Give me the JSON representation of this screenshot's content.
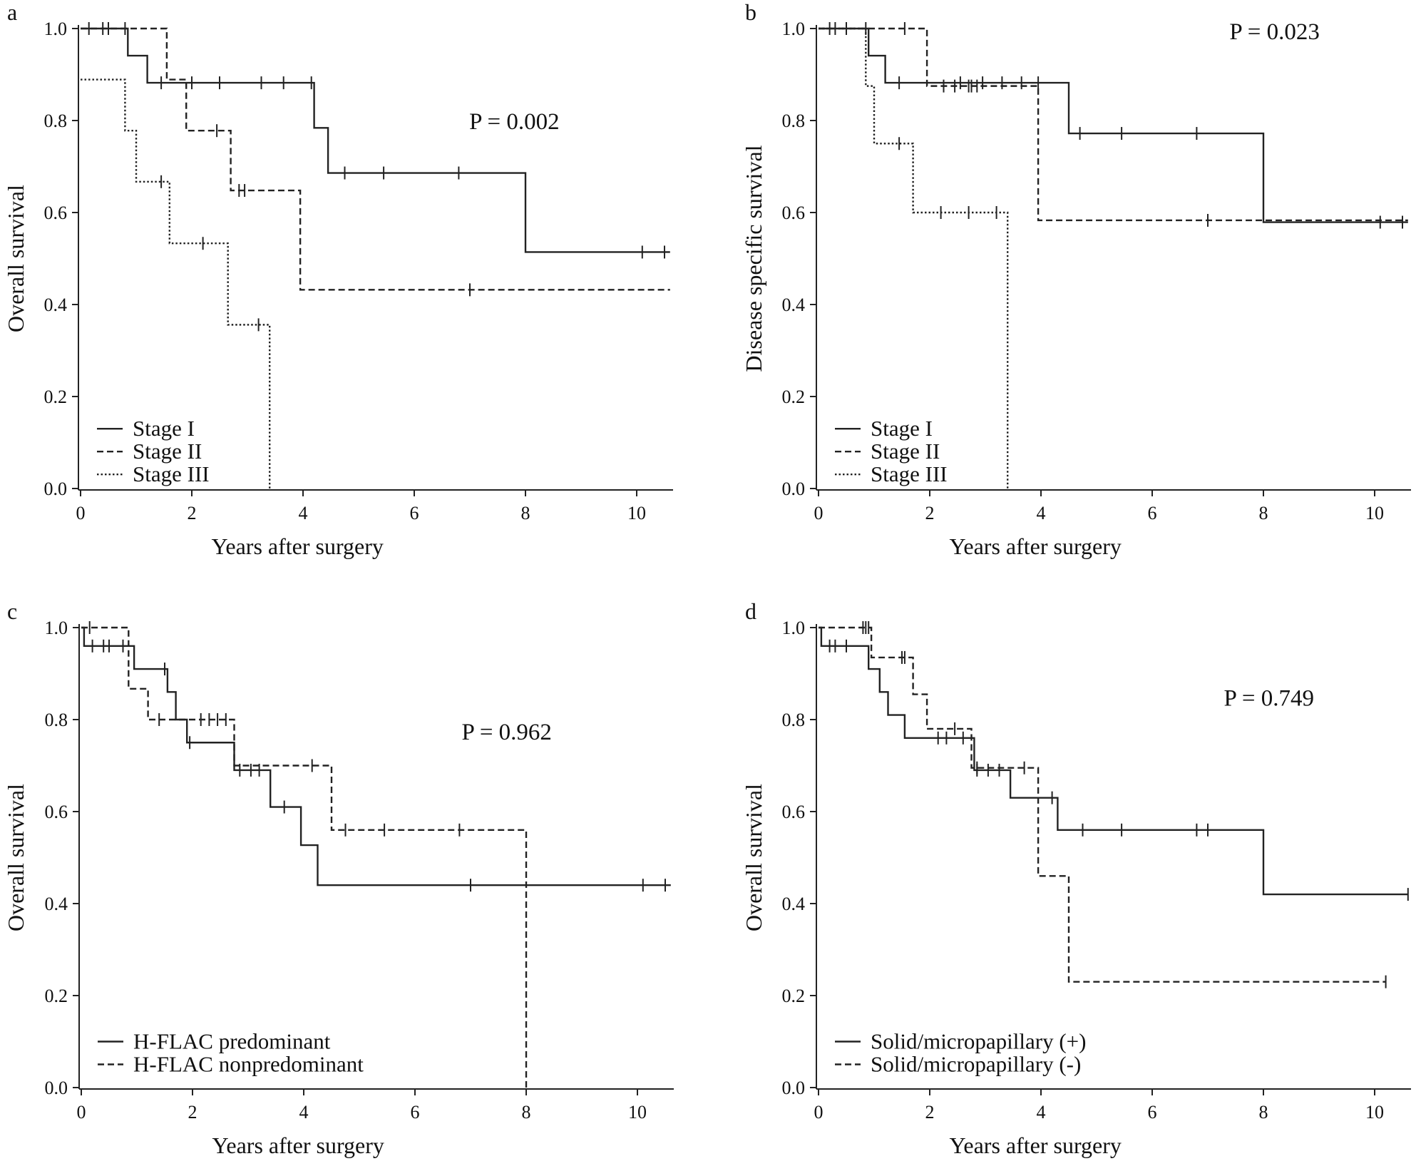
{
  "chart_data": [
    {
      "type": "line",
      "panel": "a",
      "ylabel": "Overall survival",
      "xlabel": "Years after surgery",
      "xlim": [
        0,
        10.7
      ],
      "ylim": [
        0,
        1.0
      ],
      "xticks": [
        0,
        2,
        4,
        6,
        8,
        10
      ],
      "yticks": [
        0.0,
        0.2,
        0.4,
        0.6,
        0.8,
        1.0
      ],
      "xtick_labels": [
        "0",
        "2",
        "4",
        "6",
        "8",
        "10"
      ],
      "ytick_labels": [
        "0.0",
        "0.2",
        "0.4",
        "0.6",
        "0.8",
        "1.0"
      ],
      "p_value": "P = 0.002",
      "legend": [
        "Stage I",
        "Stage II",
        "Stage III"
      ],
      "series": [
        {
          "name": "Stage I",
          "style": "solid",
          "steps": [
            [
              0,
              1.0
            ],
            [
              0.85,
              0.941
            ],
            [
              1.2,
              0.882
            ],
            [
              4.2,
              0.784
            ],
            [
              4.45,
              0.686
            ],
            [
              8.0,
              0.514
            ]
          ],
          "end": 10.6,
          "censor": [
            [
              0.15,
              1.0
            ],
            [
              0.4,
              1.0
            ],
            [
              0.5,
              1.0
            ],
            [
              0.8,
              1.0
            ],
            [
              1.45,
              0.882
            ],
            [
              2.0,
              0.882
            ],
            [
              2.5,
              0.882
            ],
            [
              3.25,
              0.882
            ],
            [
              3.65,
              0.882
            ],
            [
              4.15,
              0.882
            ],
            [
              4.75,
              0.686
            ],
            [
              5.45,
              0.686
            ],
            [
              6.8,
              0.686
            ],
            [
              10.1,
              0.514
            ],
            [
              10.5,
              0.514
            ]
          ]
        },
        {
          "name": "Stage II",
          "style": "dashed",
          "steps": [
            [
              0,
              1.0
            ],
            [
              1.55,
              0.889
            ],
            [
              1.9,
              0.778
            ],
            [
              2.7,
              0.648
            ],
            [
              3.95,
              0.432
            ]
          ],
          "end": 10.6,
          "censor": [
            [
              2.45,
              0.778
            ],
            [
              2.85,
              0.648
            ],
            [
              2.95,
              0.648
            ],
            [
              7.0,
              0.432
            ]
          ]
        },
        {
          "name": "Stage III",
          "style": "dotted",
          "steps": [
            [
              0,
              0.889
            ],
            [
              0.8,
              0.778
            ],
            [
              1.0,
              0.667
            ],
            [
              1.6,
              0.533
            ],
            [
              2.65,
              0.356
            ],
            [
              3.4,
              0.0
            ]
          ],
          "end": 3.4,
          "censor": [
            [
              1.45,
              0.667
            ],
            [
              2.2,
              0.533
            ],
            [
              3.2,
              0.356
            ]
          ]
        }
      ]
    },
    {
      "type": "line",
      "panel": "b",
      "ylabel": "Disease specific survival",
      "xlabel": "Years after surgery",
      "xlim": [
        0,
        10.7
      ],
      "ylim": [
        0,
        1.0
      ],
      "xticks": [
        0,
        2,
        4,
        6,
        8,
        10
      ],
      "yticks": [
        0.0,
        0.2,
        0.4,
        0.6,
        0.8,
        1.0
      ],
      "xtick_labels": [
        "0",
        "2",
        "4",
        "6",
        "8",
        "10"
      ],
      "ytick_labels": [
        "0.0",
        "0.2",
        "0.4",
        "0.6",
        "0.8",
        "1.0"
      ],
      "p_value": "P = 0.023",
      "legend": [
        "Stage I",
        "Stage II",
        "Stage III"
      ],
      "series": [
        {
          "name": "Stage I",
          "style": "solid",
          "steps": [
            [
              0,
              1.0
            ],
            [
              0.9,
              0.941
            ],
            [
              1.2,
              0.882
            ],
            [
              4.5,
              0.772
            ],
            [
              8.0,
              0.579
            ]
          ],
          "end": 10.6,
          "censor": [
            [
              0.2,
              1.0
            ],
            [
              0.3,
              1.0
            ],
            [
              0.5,
              1.0
            ],
            [
              0.85,
              1.0
            ],
            [
              1.45,
              0.882
            ],
            [
              2.55,
              0.882
            ],
            [
              2.95,
              0.882
            ],
            [
              3.3,
              0.882
            ],
            [
              3.65,
              0.882
            ],
            [
              3.95,
              0.882
            ],
            [
              4.7,
              0.772
            ],
            [
              5.45,
              0.772
            ],
            [
              6.8,
              0.772
            ],
            [
              10.1,
              0.579
            ],
            [
              10.5,
              0.579
            ]
          ]
        },
        {
          "name": "Stage II",
          "style": "dashed",
          "steps": [
            [
              0,
              1.0
            ],
            [
              1.95,
              0.875
            ],
            [
              3.95,
              0.583
            ]
          ],
          "end": 10.6,
          "censor": [
            [
              1.55,
              1.0
            ],
            [
              2.25,
              0.875
            ],
            [
              2.45,
              0.875
            ],
            [
              2.7,
              0.875
            ],
            [
              2.75,
              0.875
            ],
            [
              2.85,
              0.875
            ],
            [
              7.0,
              0.583
            ]
          ]
        },
        {
          "name": "Stage III",
          "style": "dotted",
          "steps": [
            [
              0,
              1.0
            ],
            [
              0.85,
              0.875
            ],
            [
              1.0,
              0.75
            ],
            [
              1.7,
              0.6
            ],
            [
              3.4,
              0.0
            ]
          ],
          "end": 3.4,
          "censor": [
            [
              1.45,
              0.75
            ],
            [
              2.2,
              0.6
            ],
            [
              2.7,
              0.6
            ],
            [
              3.2,
              0.6
            ]
          ]
        }
      ]
    },
    {
      "type": "line",
      "panel": "c",
      "ylabel": "Overall survival",
      "xlabel": "Years after surgery",
      "xlim": [
        0,
        10.7
      ],
      "ylim": [
        0,
        1.0
      ],
      "xticks": [
        0,
        2,
        4,
        6,
        8,
        10
      ],
      "yticks": [
        0.0,
        0.2,
        0.4,
        0.6,
        0.8,
        1.0
      ],
      "xtick_labels": [
        "0",
        "2",
        "4",
        "6",
        "8",
        "10"
      ],
      "ytick_labels": [
        "0.0",
        "0.2",
        "0.4",
        "0.6",
        "0.8",
        "1.0"
      ],
      "p_value": "P = 0.962",
      "legend": [
        "H-FLAC predominant",
        "H-FLAC nonpredominant"
      ],
      "series": [
        {
          "name": "H-FLAC predominant",
          "style": "solid",
          "steps": [
            [
              0,
              1.0
            ],
            [
              0.05,
              0.96
            ],
            [
              0.95,
              0.91
            ],
            [
              1.55,
              0.86
            ],
            [
              1.7,
              0.8
            ],
            [
              1.9,
              0.75
            ],
            [
              2.75,
              0.69
            ],
            [
              3.4,
              0.61
            ],
            [
              3.95,
              0.527
            ],
            [
              4.25,
              0.44
            ]
          ],
          "end": 10.6,
          "censor": [
            [
              0.2,
              0.96
            ],
            [
              0.4,
              0.96
            ],
            [
              0.5,
              0.96
            ],
            [
              0.75,
              0.96
            ],
            [
              1.5,
              0.91
            ],
            [
              1.95,
              0.75
            ],
            [
              2.85,
              0.69
            ],
            [
              3.05,
              0.69
            ],
            [
              3.2,
              0.69
            ],
            [
              3.65,
              0.61
            ],
            [
              7.0,
              0.44
            ],
            [
              10.1,
              0.44
            ],
            [
              10.5,
              0.44
            ]
          ]
        },
        {
          "name": "H-FLAC nonpredominant",
          "style": "dashed",
          "steps": [
            [
              0,
              1.0
            ],
            [
              0.85,
              0.867
            ],
            [
              1.2,
              0.8
            ],
            [
              2.75,
              0.7
            ],
            [
              4.5,
              0.56
            ],
            [
              8.0,
              0.0
            ]
          ],
          "end": 8.0,
          "censor": [
            [
              0.15,
              1.0
            ],
            [
              1.4,
              0.8
            ],
            [
              2.15,
              0.8
            ],
            [
              2.3,
              0.8
            ],
            [
              2.45,
              0.8
            ],
            [
              2.6,
              0.8
            ],
            [
              4.15,
              0.7
            ],
            [
              4.75,
              0.56
            ],
            [
              5.45,
              0.56
            ],
            [
              6.8,
              0.56
            ]
          ]
        }
      ]
    },
    {
      "type": "line",
      "panel": "d",
      "ylabel": "Overall survival",
      "xlabel": "Years after surgery",
      "xlim": [
        0,
        10.7
      ],
      "ylim": [
        0,
        1.0
      ],
      "xticks": [
        0,
        2,
        4,
        6,
        8,
        10
      ],
      "yticks": [
        0.0,
        0.2,
        0.4,
        0.6,
        0.8,
        1.0
      ],
      "xtick_labels": [
        "0",
        "2",
        "4",
        "6",
        "8",
        "10"
      ],
      "ytick_labels": [
        "0.0",
        "0.2",
        "0.4",
        "0.6",
        "0.8",
        "1.0"
      ],
      "p_value": "P = 0.749",
      "legend": [
        "Solid/micropapillary (+)",
        "Solid/micropapillary (-)"
      ],
      "series": [
        {
          "name": "Solid/micropapillary (+)",
          "style": "solid",
          "steps": [
            [
              0,
              1.0
            ],
            [
              0.05,
              0.96
            ],
            [
              0.9,
              0.91
            ],
            [
              1.1,
              0.86
            ],
            [
              1.25,
              0.81
            ],
            [
              1.55,
              0.76
            ],
            [
              2.8,
              0.69
            ],
            [
              3.45,
              0.63
            ],
            [
              4.3,
              0.56
            ],
            [
              8.0,
              0.42
            ]
          ],
          "end": 10.6,
          "censor": [
            [
              0.2,
              0.96
            ],
            [
              0.3,
              0.96
            ],
            [
              0.5,
              0.96
            ],
            [
              0.85,
              1.0
            ],
            [
              2.15,
              0.76
            ],
            [
              2.3,
              0.76
            ],
            [
              2.6,
              0.76
            ],
            [
              2.85,
              0.69
            ],
            [
              3.05,
              0.69
            ],
            [
              3.25,
              0.69
            ],
            [
              4.2,
              0.63
            ],
            [
              4.75,
              0.56
            ],
            [
              5.45,
              0.56
            ],
            [
              6.8,
              0.56
            ],
            [
              7.0,
              0.56
            ],
            [
              10.6,
              0.42
            ]
          ]
        },
        {
          "name": "Solid/micropapillary (-)",
          "style": "dashed",
          "steps": [
            [
              0,
              1.0
            ],
            [
              0.95,
              0.935
            ],
            [
              1.7,
              0.855
            ],
            [
              1.95,
              0.78
            ],
            [
              2.75,
              0.695
            ],
            [
              3.95,
              0.46
            ],
            [
              4.5,
              0.23
            ]
          ],
          "end": 10.2,
          "censor": [
            [
              0.8,
              1.0
            ],
            [
              0.9,
              1.0
            ],
            [
              1.5,
              0.935
            ],
            [
              1.55,
              0.935
            ],
            [
              2.45,
              0.78
            ],
            [
              2.85,
              0.695
            ],
            [
              3.7,
              0.695
            ],
            [
              10.2,
              0.23
            ]
          ]
        }
      ]
    }
  ]
}
